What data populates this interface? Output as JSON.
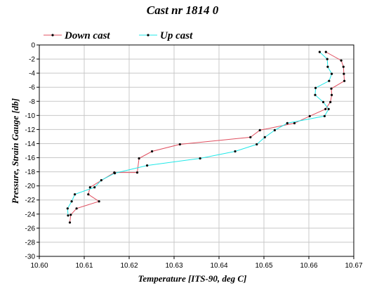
{
  "chart_data": {
    "type": "line",
    "title": "Cast nr 1814 0",
    "xlabel": "Temperature [ITS-90, deg C]",
    "ylabel": "Pressure, Strain Gauge [db]",
    "xlim": [
      10.6,
      10.67
    ],
    "ylim": [
      -30,
      0
    ],
    "xticks": [
      "10.60",
      "10.61",
      "10.62",
      "10.63",
      "10.64",
      "10.65",
      "10.66",
      "10.67"
    ],
    "yticks": [
      "0",
      "-2",
      "-4",
      "-6",
      "-8",
      "-10",
      "-12",
      "-14",
      "-16",
      "-18",
      "-20",
      "-22",
      "-24",
      "-26",
      "-28",
      "-30"
    ],
    "grid": true,
    "legend": "top-left",
    "series": [
      {
        "name": "Down cast",
        "color": "#e05060",
        "points": [
          [
            10.6638,
            -1.0
          ],
          [
            10.6672,
            -2.2
          ],
          [
            10.6677,
            -3.1
          ],
          [
            10.6678,
            -4.1
          ],
          [
            10.6679,
            -5.1
          ],
          [
            10.665,
            -6.2
          ],
          [
            10.6651,
            -7.1
          ],
          [
            10.6648,
            -8.1
          ],
          [
            10.6637,
            -9.1
          ],
          [
            10.6602,
            -10.1
          ],
          [
            10.6568,
            -11.1
          ],
          [
            10.6491,
            -12.1
          ],
          [
            10.647,
            -13.1
          ],
          [
            10.6313,
            -14.1
          ],
          [
            10.6251,
            -15.1
          ],
          [
            10.6222,
            -16.1
          ],
          [
            10.6218,
            -18.1
          ],
          [
            10.6167,
            -18.1
          ],
          [
            10.6113,
            -20.2
          ],
          [
            10.6109,
            -21.2
          ],
          [
            10.6133,
            -22.2
          ],
          [
            10.6083,
            -23.2
          ],
          [
            10.607,
            -24.1
          ],
          [
            10.6068,
            -25.2
          ]
        ]
      },
      {
        "name": "Up cast",
        "color": "#20e8e8",
        "points": [
          [
            10.6624,
            -1.0
          ],
          [
            10.6641,
            -2.0
          ],
          [
            10.6642,
            -3.1
          ],
          [
            10.6651,
            -4.1
          ],
          [
            10.6645,
            -5.1
          ],
          [
            10.6615,
            -6.1
          ],
          [
            10.6614,
            -7.1
          ],
          [
            10.6632,
            -8.1
          ],
          [
            10.6644,
            -9.1
          ],
          [
            10.6635,
            -10.1
          ],
          [
            10.6552,
            -11.1
          ],
          [
            10.6524,
            -12.1
          ],
          [
            10.6502,
            -13.1
          ],
          [
            10.6484,
            -14.1
          ],
          [
            10.6436,
            -15.1
          ],
          [
            10.6358,
            -16.1
          ],
          [
            10.624,
            -17.1
          ],
          [
            10.6168,
            -18.2
          ],
          [
            10.6138,
            -19.2
          ],
          [
            10.6123,
            -20.2
          ],
          [
            10.6079,
            -21.2
          ],
          [
            10.6072,
            -22.2
          ],
          [
            10.6063,
            -23.2
          ],
          [
            10.6064,
            -24.2
          ]
        ]
      }
    ]
  }
}
